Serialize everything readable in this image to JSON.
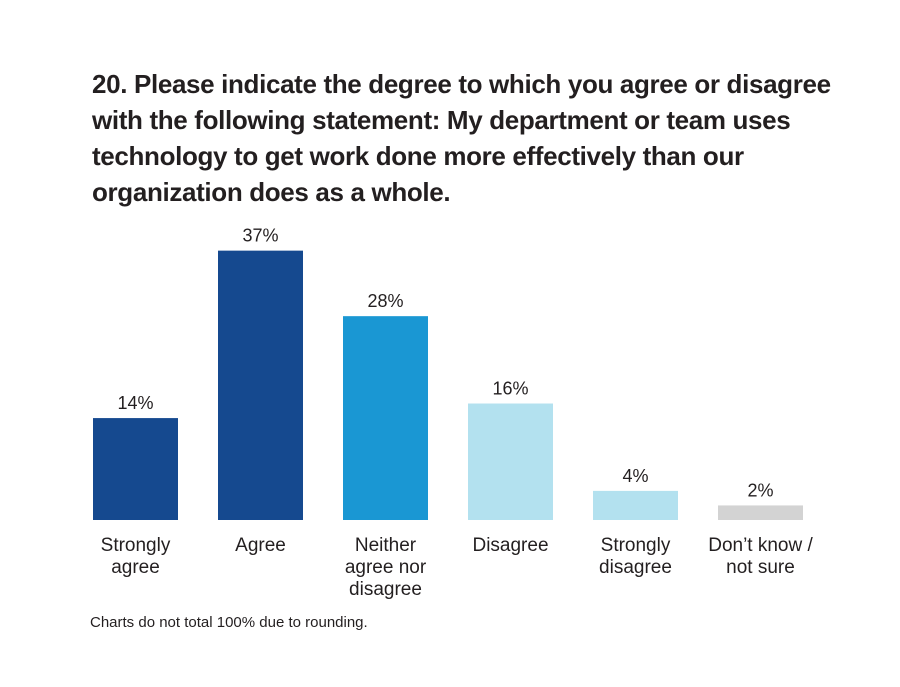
{
  "chart_data": {
    "type": "bar",
    "title": "20. Please indicate the degree to which you agree or disagree with the following statement: My department or team uses technology to get work done more effectively than our organization does as a whole.",
    "categories": [
      "Strongly agree",
      "Agree",
      "Neither agree nor disagree",
      "Disagree",
      "Strongly disagree",
      "Don’t know / not sure"
    ],
    "category_label_lines": [
      [
        "Strongly",
        "agree"
      ],
      [
        "Agree"
      ],
      [
        "Neither",
        "agree nor",
        "disagree"
      ],
      [
        "Disagree"
      ],
      [
        "Strongly",
        "disagree"
      ],
      [
        "Don’t know /",
        "not sure"
      ]
    ],
    "values": [
      14,
      37,
      28,
      16,
      4,
      2
    ],
    "data_labels": [
      "14%",
      "37%",
      "28%",
      "16%",
      "4%",
      "2%"
    ],
    "colors": [
      "#15498f",
      "#15498f",
      "#1a97d3",
      "#b3e1ef",
      "#b3e1ef",
      "#d3d3d3"
    ],
    "xlabel": "",
    "ylabel": "",
    "ylim": [
      0,
      40
    ],
    "grid": false,
    "legend": "none"
  },
  "footnote": "Charts do not total 100% due to rounding."
}
